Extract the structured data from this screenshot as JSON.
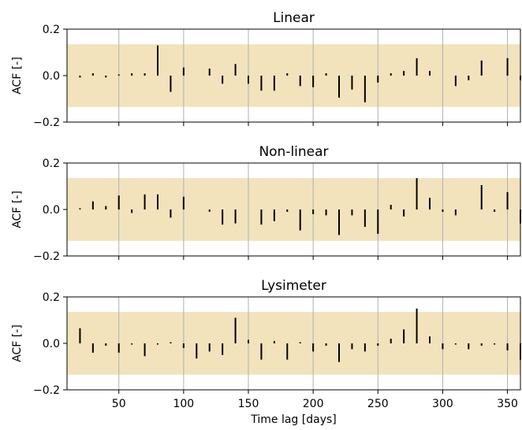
{
  "chart_data": [
    {
      "type": "bar",
      "title": "Linear",
      "ylabel": "ACF [-]",
      "xlabel": "",
      "xlim": [
        10,
        360
      ],
      "ylim": [
        -0.2,
        0.2
      ],
      "band": [
        -0.135,
        0.135
      ],
      "band_color": "#f2e3bd",
      "bar_color": "#000000",
      "grid": "x",
      "yticks": [
        "−0.2",
        "0.0",
        "0.2"
      ],
      "yticks_values": [
        -0.2,
        0.0,
        0.2
      ],
      "xticks": [
        50,
        100,
        150,
        200,
        250,
        300,
        350
      ],
      "show_xtick_labels": false,
      "x": [
        10,
        20,
        30,
        40,
        50,
        60,
        70,
        80,
        90,
        100,
        110,
        120,
        130,
        140,
        150,
        160,
        170,
        180,
        190,
        200,
        210,
        220,
        230,
        240,
        250,
        260,
        270,
        280,
        290,
        300,
        310,
        320,
        330,
        340,
        350,
        360
      ],
      "values": [
        0.0,
        -0.008,
        0.01,
        -0.008,
        0.005,
        0.01,
        0.01,
        0.13,
        -0.07,
        0.035,
        0.0,
        0.03,
        -0.035,
        0.05,
        -0.035,
        -0.065,
        -0.065,
        0.01,
        -0.045,
        -0.05,
        0.01,
        -0.095,
        -0.06,
        -0.115,
        -0.03,
        0.01,
        0.02,
        0.075,
        0.02,
        0.0,
        -0.045,
        -0.02,
        0.065,
        0.0,
        0.075,
        -0.02
      ]
    },
    {
      "type": "bar",
      "title": "Non-linear",
      "ylabel": "ACF [-]",
      "xlabel": "",
      "xlim": [
        10,
        360
      ],
      "ylim": [
        -0.2,
        0.2
      ],
      "band": [
        -0.135,
        0.135
      ],
      "band_color": "#f2e3bd",
      "bar_color": "#000000",
      "grid": "x",
      "yticks": [
        "−0.2",
        "0.0",
        "0.2"
      ],
      "yticks_values": [
        -0.2,
        0.0,
        0.2
      ],
      "xticks": [
        50,
        100,
        150,
        200,
        250,
        300,
        350
      ],
      "show_xtick_labels": false,
      "x": [
        10,
        20,
        30,
        40,
        50,
        60,
        70,
        80,
        90,
        100,
        110,
        120,
        130,
        140,
        150,
        160,
        170,
        180,
        190,
        200,
        210,
        220,
        230,
        240,
        250,
        260,
        270,
        280,
        290,
        300,
        310,
        320,
        330,
        340,
        350,
        360
      ],
      "values": [
        0.0,
        0.005,
        0.035,
        0.015,
        0.06,
        -0.015,
        0.065,
        0.065,
        -0.035,
        0.055,
        0.0,
        -0.01,
        -0.065,
        -0.06,
        0.0,
        -0.065,
        -0.05,
        -0.01,
        -0.09,
        -0.02,
        -0.025,
        -0.11,
        -0.025,
        -0.075,
        -0.105,
        0.02,
        -0.03,
        0.135,
        0.05,
        -0.01,
        -0.025,
        0.0,
        0.105,
        -0.01,
        0.075,
        -0.06
      ]
    },
    {
      "type": "bar",
      "title": "Lysimeter",
      "ylabel": "ACF [-]",
      "xlabel": "Time lag [days]",
      "xlim": [
        10,
        360
      ],
      "ylim": [
        -0.2,
        0.2
      ],
      "band": [
        -0.135,
        0.135
      ],
      "band_color": "#f2e3bd",
      "bar_color": "#000000",
      "grid": "x",
      "yticks": [
        "−0.2",
        "0.0",
        "0.2"
      ],
      "yticks_values": [
        -0.2,
        0.0,
        0.2
      ],
      "xticks": [
        50,
        100,
        150,
        200,
        250,
        300,
        350
      ],
      "show_xtick_labels": true,
      "x": [
        10,
        20,
        30,
        40,
        50,
        60,
        70,
        80,
        90,
        100,
        110,
        120,
        130,
        140,
        150,
        160,
        170,
        180,
        190,
        200,
        210,
        220,
        230,
        240,
        250,
        260,
        270,
        280,
        290,
        300,
        310,
        320,
        330,
        340,
        350,
        360
      ],
      "values": [
        0.0,
        0.065,
        -0.04,
        -0.01,
        -0.04,
        -0.005,
        -0.055,
        -0.005,
        0.005,
        -0.02,
        -0.065,
        -0.035,
        -0.05,
        0.11,
        0.015,
        -0.07,
        0.01,
        -0.07,
        0.005,
        -0.035,
        -0.01,
        -0.08,
        -0.025,
        -0.035,
        -0.01,
        0.02,
        0.06,
        0.15,
        0.03,
        -0.025,
        -0.005,
        -0.025,
        -0.01,
        -0.005,
        -0.03,
        -0.07
      ]
    }
  ]
}
